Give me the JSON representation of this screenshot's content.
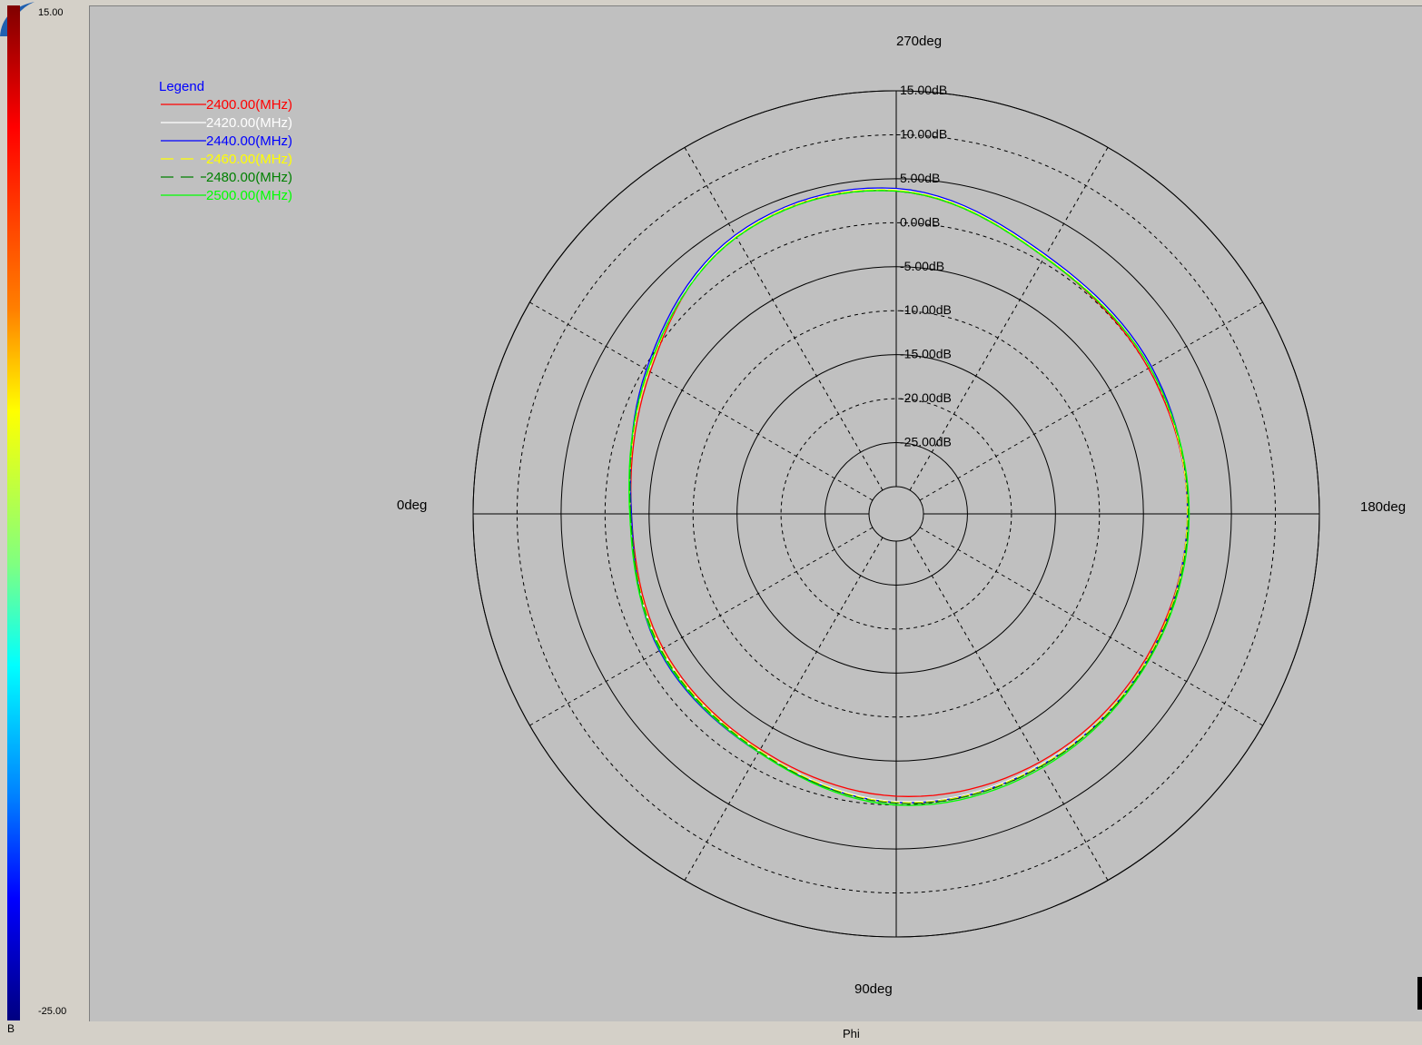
{
  "colorbar": {
    "max_label": "15.00",
    "min_label": "-25.00",
    "unit_label": "B"
  },
  "x_axis_label": "Phi",
  "legend": {
    "title": "Legend",
    "title_color": "#0000ff",
    "entries": [
      {
        "label": "2400.00(MHz)",
        "color": "#ff0000",
        "dash": "solid"
      },
      {
        "label": "2420.00(MHz)",
        "color": "#ffffff",
        "dash": "solid"
      },
      {
        "label": "2440.00(MHz)",
        "color": "#0000ff",
        "dash": "solid"
      },
      {
        "label": "2460.00(MHz)",
        "color": "#ffff00",
        "dash": "dashed"
      },
      {
        "label": "2480.00(MHz)",
        "color": "#008000",
        "dash": "dashed"
      },
      {
        "label": "2500.00(MHz)",
        "color": "#00ff00",
        "dash": "solid"
      }
    ]
  },
  "chart_data": {
    "type": "polar",
    "r_unit": "dB",
    "r_range": [
      -30,
      15
    ],
    "r_ticks": [
      15,
      10,
      5,
      0,
      -5,
      -10,
      -15,
      -20,
      -25
    ],
    "r_tick_labels": [
      "15.00dB",
      "10.00dB",
      "5.00dB",
      "0.00dB",
      "-5.00dB",
      "-10.00dB",
      "-15.00dB",
      "-20.00dB",
      "-25.00dB"
    ],
    "angle_labels": [
      {
        "angle": 0,
        "label": "0deg"
      },
      {
        "angle": 90,
        "label": "90deg"
      },
      {
        "angle": 180,
        "label": "180deg"
      },
      {
        "angle": 270,
        "label": "270deg"
      }
    ],
    "angle_spokes_deg": [
      0,
      30,
      60,
      90,
      120,
      150,
      180,
      210,
      240,
      270,
      300,
      330
    ],
    "background": "#c0c0c0",
    "angles_deg": [
      0,
      30,
      60,
      90,
      120,
      150,
      180,
      210,
      240,
      270,
      300,
      330
    ],
    "series": [
      {
        "name": "2400.00(MHz)",
        "color": "#ff0000",
        "values": [
          -3.0,
          -2.5,
          -2.2,
          -1.0,
          -0.5,
          -0.3,
          0.0,
          0.0,
          0.6,
          3.6,
          3.4,
          -0.8
        ]
      },
      {
        "name": "2420.00(MHz)",
        "color": "#ffffff",
        "values": [
          -2.8,
          -2.3,
          -2.0,
          -0.4,
          -0.2,
          -0.1,
          0.0,
          0.2,
          0.8,
          3.8,
          3.4,
          -0.6
        ]
      },
      {
        "name": "2440.00(MHz)",
        "color": "#0000ff",
        "values": [
          -3.0,
          -2.0,
          -1.8,
          -0.3,
          -0.1,
          -0.1,
          0.0,
          0.4,
          0.9,
          3.9,
          3.5,
          -0.3
        ]
      },
      {
        "name": "2460.00(MHz)",
        "color": "#ffff00",
        "values": [
          -2.9,
          -2.3,
          -2.0,
          -0.3,
          -0.1,
          -0.1,
          0.0,
          0.2,
          0.7,
          3.7,
          3.3,
          -0.6
        ]
      },
      {
        "name": "2480.00(MHz)",
        "color": "#008000",
        "values": [
          -2.9,
          -2.2,
          -1.9,
          -0.2,
          0.0,
          0.0,
          0.1,
          0.2,
          0.6,
          3.6,
          3.2,
          -0.5
        ]
      },
      {
        "name": "2500.00(MHz)",
        "color": "#00ff00",
        "values": [
          -2.8,
          -2.1,
          -1.8,
          0.0,
          0.2,
          0.1,
          0.2,
          0.2,
          0.6,
          3.6,
          3.2,
          -0.5
        ]
      }
    ]
  }
}
